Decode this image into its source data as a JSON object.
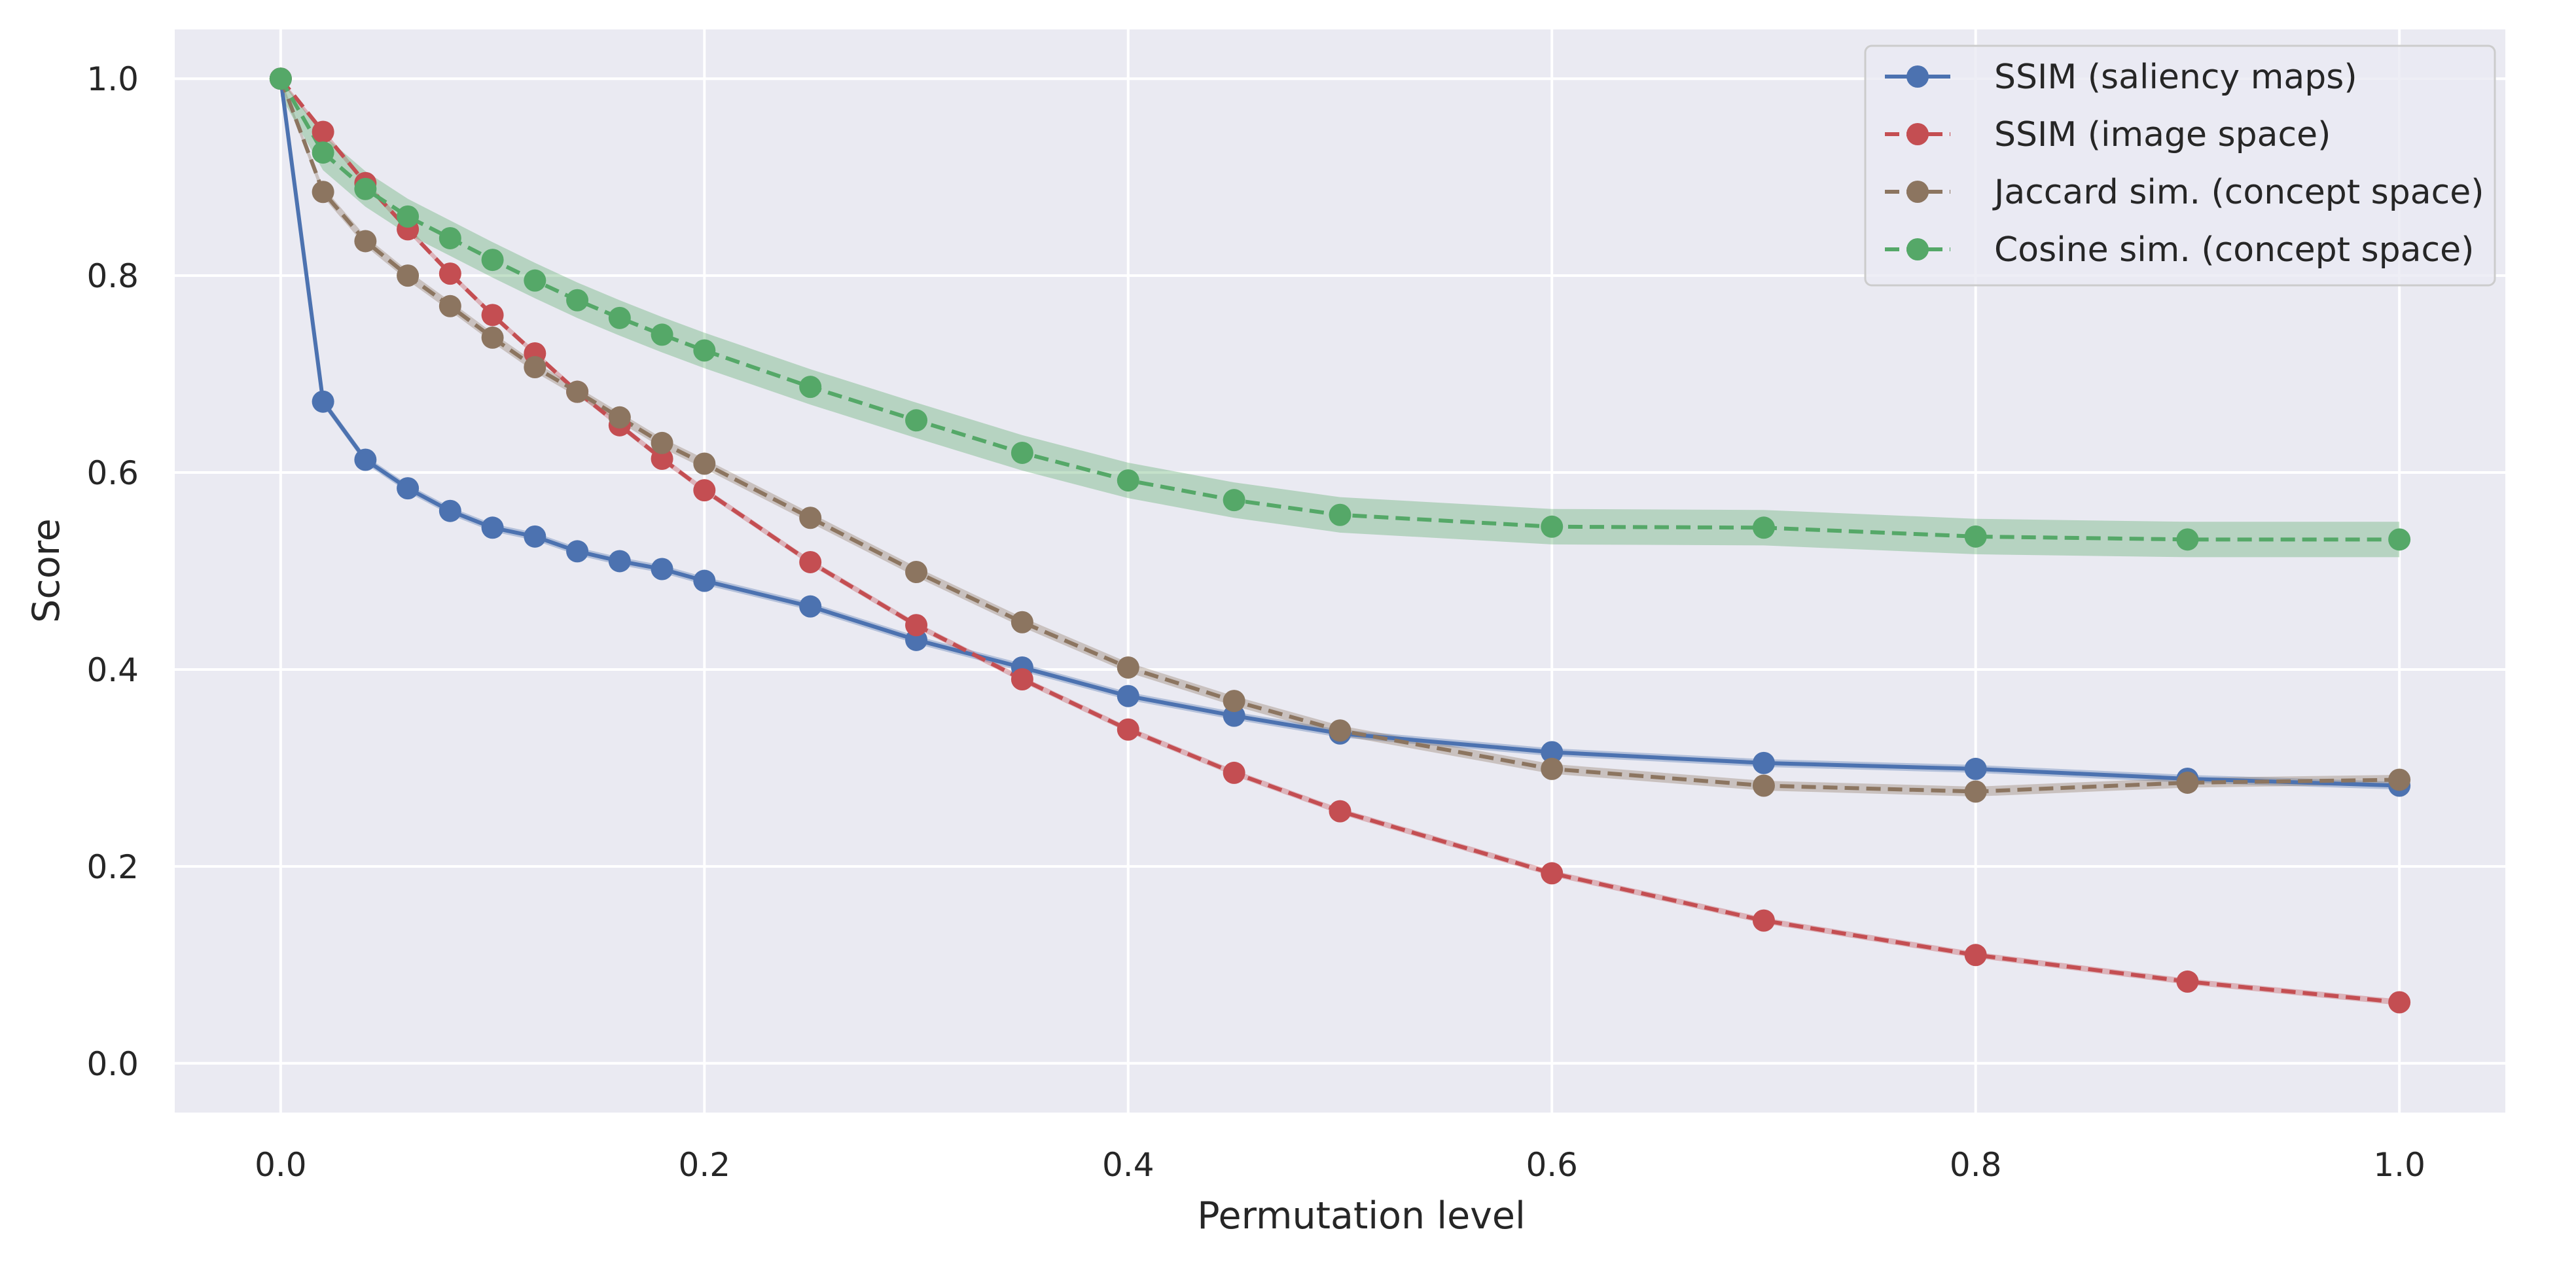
{
  "chart_data": {
    "type": "line",
    "title": "",
    "xlabel": "Permutation level",
    "ylabel": "Score",
    "xlim": [
      -0.05,
      1.05
    ],
    "ylim": [
      -0.05,
      1.05
    ],
    "xticks": [
      0.0,
      0.2,
      0.4,
      0.6,
      0.8,
      1.0
    ],
    "yticks": [
      0.0,
      0.2,
      0.4,
      0.6,
      0.8,
      1.0
    ],
    "xtick_labels": [
      "0.0",
      "0.2",
      "0.4",
      "0.6",
      "0.8",
      "1.0"
    ],
    "ytick_labels": [
      "0.0",
      "0.2",
      "0.4",
      "0.6",
      "0.8",
      "1.0"
    ],
    "grid": true,
    "legend_position": "top-right",
    "x": [
      0.0,
      0.02,
      0.04,
      0.06,
      0.08,
      0.1,
      0.12,
      0.14,
      0.16,
      0.18,
      0.2,
      0.25,
      0.3,
      0.35,
      0.4,
      0.45,
      0.5,
      0.6,
      0.7,
      0.8,
      0.9,
      1.0
    ],
    "series": [
      {
        "name": "SSIM (saliency maps)",
        "color": "#4c72b0",
        "line_style": "solid",
        "band": 0.004,
        "values": [
          1.0,
          0.672,
          0.613,
          0.584,
          0.561,
          0.544,
          0.535,
          0.52,
          0.51,
          0.502,
          0.49,
          0.464,
          0.43,
          0.402,
          0.373,
          0.353,
          0.335,
          0.316,
          0.305,
          0.299,
          0.289,
          0.282
        ]
      },
      {
        "name": "SSIM (image space)",
        "color": "#c44e52",
        "line_style": "dashed",
        "band": 0.003,
        "values": [
          1.0,
          0.946,
          0.894,
          0.847,
          0.802,
          0.76,
          0.721,
          0.682,
          0.648,
          0.614,
          0.582,
          0.509,
          0.445,
          0.39,
          0.339,
          0.295,
          0.256,
          0.193,
          0.145,
          0.11,
          0.083,
          0.062
        ]
      },
      {
        "name": "Jaccard sim. (concept space)",
        "color": "#8c7560",
        "line_style": "dashed",
        "band": 0.005,
        "values": [
          1.0,
          0.885,
          0.835,
          0.8,
          0.769,
          0.737,
          0.707,
          0.682,
          0.656,
          0.63,
          0.609,
          0.554,
          0.499,
          0.448,
          0.402,
          0.368,
          0.338,
          0.299,
          0.282,
          0.276,
          0.285,
          0.288
        ]
      },
      {
        "name": "Cosine sim. (concept space)",
        "color": "#55a868",
        "line_style": "dashed",
        "band": 0.018,
        "values": [
          1.0,
          0.925,
          0.888,
          0.86,
          0.838,
          0.816,
          0.795,
          0.775,
          0.757,
          0.74,
          0.724,
          0.687,
          0.653,
          0.62,
          0.592,
          0.572,
          0.557,
          0.545,
          0.544,
          0.535,
          0.532,
          0.532
        ]
      }
    ]
  }
}
